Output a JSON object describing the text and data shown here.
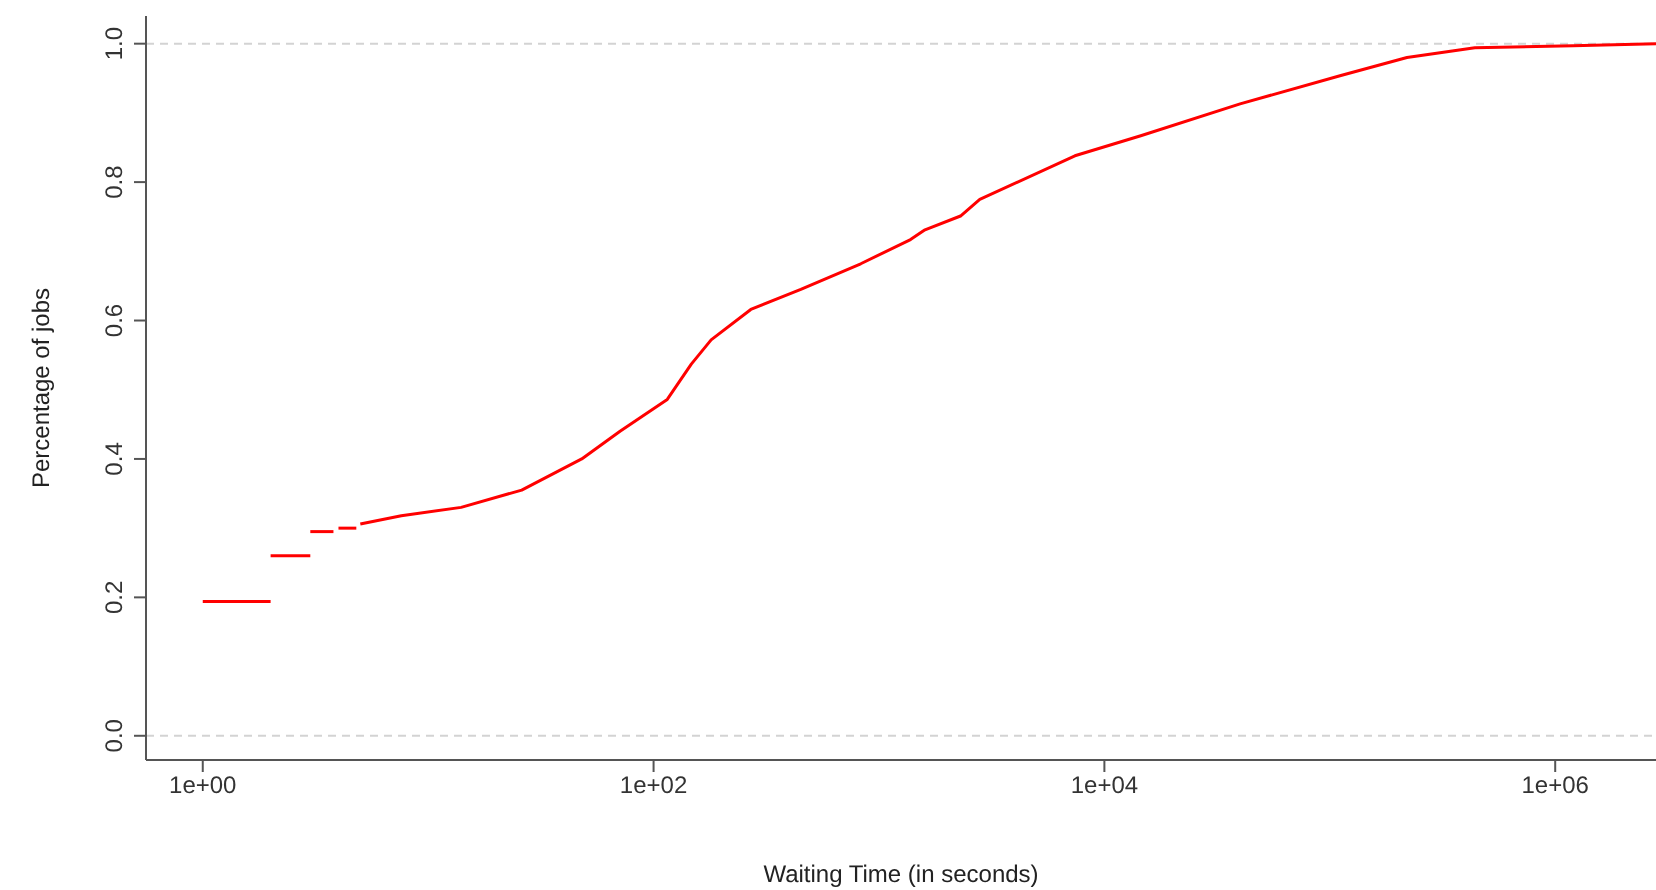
{
  "chart_data": {
    "type": "line",
    "xlabel": "Waiting Time (in seconds)",
    "ylabel": "Percentage of jobs",
    "log": "x",
    "xlim": [
      0.56,
      2800000
    ],
    "ylim": [
      -0.035,
      1.04
    ],
    "xticks": [
      {
        "value": 1,
        "label": "1e+00"
      },
      {
        "value": 100,
        "label": "1e+02"
      },
      {
        "value": 10000,
        "label": "1e+04"
      },
      {
        "value": 1000000,
        "label": "1e+06"
      }
    ],
    "yticks": [
      {
        "value": 0,
        "label": "0.0"
      },
      {
        "value": 0.2,
        "label": "0.2"
      },
      {
        "value": 0.4,
        "label": "0.4"
      },
      {
        "value": 0.6,
        "label": "0.6"
      },
      {
        "value": 0.8,
        "label": "0.8"
      },
      {
        "value": 1,
        "label": "1.0"
      }
    ],
    "grid": false,
    "legend": false,
    "marker": "none",
    "line_style": "solid",
    "ref_lines": [
      {
        "axis": "y",
        "value": 0,
        "color": "#d3d3d3",
        "line_style": "dashed"
      },
      {
        "axis": "y",
        "value": 1,
        "color": "#d3d3d3",
        "line_style": "dashed"
      }
    ],
    "series": [
      {
        "color": "#ff0000",
        "x": [
          1,
          2
        ],
        "values": [
          0.194,
          0.194
        ]
      },
      {
        "color": "#ff0000",
        "x": [
          2,
          3
        ],
        "values": [
          0.26,
          0.26
        ]
      },
      {
        "color": "#ff0000",
        "x": [
          3,
          3.8
        ],
        "values": [
          0.295,
          0.295
        ]
      },
      {
        "color": "#ff0000",
        "x": [
          4,
          4.8
        ],
        "values": [
          0.3,
          0.3
        ]
      },
      {
        "color": "#ff0000",
        "x": [
          5,
          7.6,
          14,
          26,
          48,
          71,
          115,
          147,
          180,
          270,
          450,
          830,
          1380,
          1600,
          2300,
          2800,
          7400,
          14500,
          40000,
          112000,
          220000,
          440000,
          1200000,
          2800000
        ],
        "values": [
          0.306,
          0.318,
          0.33,
          0.355,
          0.4,
          0.44,
          0.486,
          0.537,
          0.572,
          0.616,
          0.645,
          0.682,
          0.717,
          0.731,
          0.751,
          0.775,
          0.838,
          0.867,
          0.913,
          0.954,
          0.98,
          0.994,
          0.997,
          1.0
        ]
      }
    ]
  }
}
